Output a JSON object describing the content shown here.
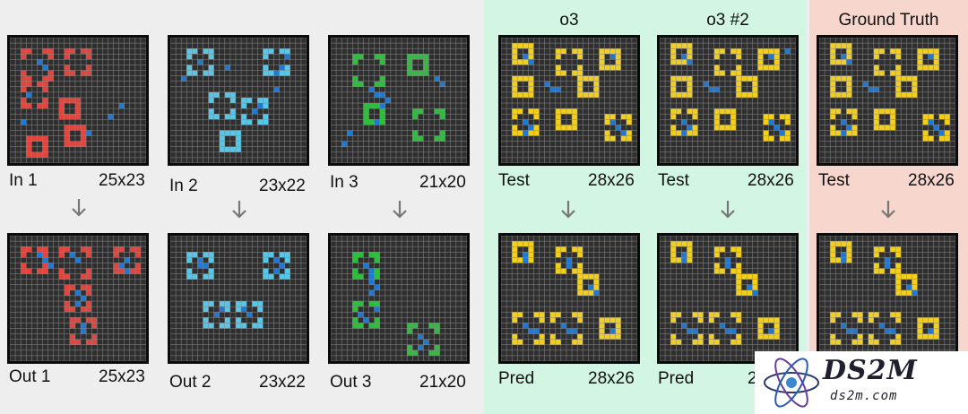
{
  "panels": {
    "o3_bg": "#d3f5e3",
    "gt_bg": "#f6d6cd"
  },
  "columns": {
    "o3_title": "o3",
    "o3_2_title": "o3 #2",
    "gt_title": "Ground Truth"
  },
  "colors": {
    "grid_bg": "#2f2f2f",
    "grid_line": "#8a8a8a",
    "red": "#e0453e",
    "blue": "#1f78d1",
    "cyan": "#58c6e6",
    "green": "#2ebd3e",
    "yellow": "#f2cf1f"
  },
  "examples": [
    {
      "in_label": "In 1",
      "in_size": "25x23",
      "out_label": "Out 1",
      "out_size": "25x23"
    },
    {
      "in_label": "In 2",
      "in_size": "23x22",
      "out_label": "Out 2",
      "out_size": "23x22"
    },
    {
      "in_label": "In 3",
      "in_size": "21x20",
      "out_label": "Out 3",
      "out_size": "21x20"
    }
  ],
  "test": [
    {
      "in_label": "Test",
      "in_size": "28x26",
      "out_label": "Pred",
      "out_size": "28x26"
    },
    {
      "in_label": "Test",
      "in_size": "28x26",
      "out_label": "Pred",
      "out_size": "28x26"
    },
    {
      "in_label": "Test",
      "in_size": "28x26"
    }
  ],
  "arrow_icon": "down-arrow-icon",
  "watermark": {
    "brand": "DS2M",
    "url": "ds2m.com"
  }
}
